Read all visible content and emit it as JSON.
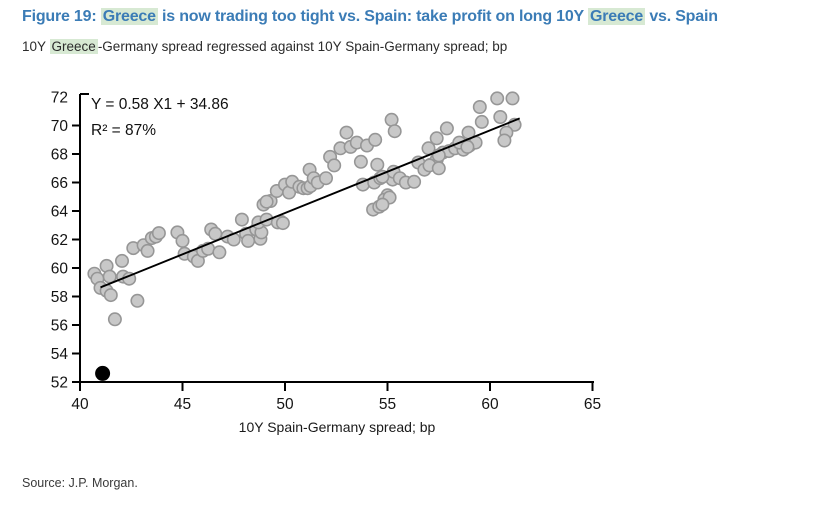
{
  "header": {
    "title_segments": [
      {
        "text": "Figure 19: ",
        "hl": false
      },
      {
        "text": "Greece",
        "hl": true
      },
      {
        "text": " is now trading too tight vs. Spain: take profit on long 10Y ",
        "hl": false
      },
      {
        "text": "Greece",
        "hl": true
      },
      {
        "text": " vs. Spain",
        "hl": false
      }
    ],
    "subtitle_segments": [
      {
        "text": "10Y ",
        "hl": false
      },
      {
        "text": "Greece",
        "hl": true
      },
      {
        "text": "-Germany spread regressed against 10Y Spain-Germany spread; bp",
        "hl": false
      }
    ]
  },
  "chart_data": {
    "type": "scatter",
    "title": "",
    "xlabel": "10Y Spain-Germany spread; bp",
    "ylabel": "",
    "xlim": [
      40,
      65
    ],
    "ylim": [
      52,
      72
    ],
    "xticks": [
      40,
      45,
      50,
      55,
      60,
      65
    ],
    "yticks": [
      52,
      54,
      56,
      58,
      60,
      62,
      64,
      66,
      68,
      70,
      72
    ],
    "grid": false,
    "legend": "none",
    "annotation": {
      "line1": "Y = 0.58 X1 + 34.86",
      "line2": "R² = 87%"
    },
    "regression": {
      "slope": 0.58,
      "intercept": 34.86,
      "r2_pct": 87,
      "x_start": 41.0,
      "x_end": 61.45
    },
    "highlight_point": {
      "x": 41.1,
      "y": 52.6
    },
    "points": [
      [
        40.7,
        59.6
      ],
      [
        40.85,
        59.25
      ],
      [
        41.0,
        58.6
      ],
      [
        41.3,
        60.15
      ],
      [
        41.3,
        58.4
      ],
      [
        41.45,
        59.4
      ],
      [
        41.5,
        58.1
      ],
      [
        41.7,
        56.4
      ],
      [
        42.05,
        60.5
      ],
      [
        42.1,
        59.4
      ],
      [
        42.4,
        59.25
      ],
      [
        42.6,
        61.4
      ],
      [
        42.8,
        57.7
      ],
      [
        43.1,
        61.6
      ],
      [
        43.3,
        61.2
      ],
      [
        43.5,
        62.1
      ],
      [
        43.7,
        62.2
      ],
      [
        43.85,
        62.45
      ],
      [
        44.75,
        62.5
      ],
      [
        45.0,
        61.9
      ],
      [
        45.1,
        61.0
      ],
      [
        45.55,
        60.8
      ],
      [
        45.75,
        60.5
      ],
      [
        46.0,
        61.2
      ],
      [
        46.25,
        61.35
      ],
      [
        46.4,
        62.7
      ],
      [
        46.6,
        62.4
      ],
      [
        46.8,
        61.1
      ],
      [
        47.2,
        62.2
      ],
      [
        47.5,
        62.0
      ],
      [
        47.9,
        63.4
      ],
      [
        48.1,
        62.4
      ],
      [
        48.2,
        61.9
      ],
      [
        48.6,
        62.7
      ],
      [
        48.8,
        62.05
      ],
      [
        48.85,
        62.5
      ],
      [
        48.7,
        63.2
      ],
      [
        49.1,
        63.4
      ],
      [
        49.8,
        63.25
      ],
      [
        48.95,
        64.45
      ],
      [
        49.3,
        64.7
      ],
      [
        49.65,
        63.2
      ],
      [
        49.9,
        63.15
      ],
      [
        49.1,
        64.65
      ],
      [
        49.6,
        65.4
      ],
      [
        50.0,
        65.85
      ],
      [
        50.2,
        65.3
      ],
      [
        50.35,
        66.05
      ],
      [
        50.7,
        65.7
      ],
      [
        50.9,
        65.6
      ],
      [
        51.1,
        65.6
      ],
      [
        51.2,
        66.9
      ],
      [
        51.25,
        65.75
      ],
      [
        51.4,
        66.3
      ],
      [
        51.6,
        66.0
      ],
      [
        52.0,
        66.3
      ],
      [
        52.2,
        67.8
      ],
      [
        52.4,
        67.2
      ],
      [
        52.7,
        68.4
      ],
      [
        53.0,
        69.5
      ],
      [
        53.2,
        68.5
      ],
      [
        53.5,
        68.8
      ],
      [
        53.7,
        67.45
      ],
      [
        54.0,
        68.6
      ],
      [
        54.4,
        69.0
      ],
      [
        55.2,
        70.4
      ],
      [
        55.35,
        69.6
      ],
      [
        53.8,
        65.85
      ],
      [
        54.35,
        66.0
      ],
      [
        54.65,
        66.3
      ],
      [
        55.0,
        65.1
      ],
      [
        55.25,
        66.2
      ],
      [
        54.3,
        64.1
      ],
      [
        54.6,
        64.3
      ],
      [
        54.85,
        64.8
      ],
      [
        55.1,
        64.95
      ],
      [
        54.75,
        64.45
      ],
      [
        54.5,
        67.25
      ],
      [
        54.75,
        66.4
      ],
      [
        55.3,
        66.75
      ],
      [
        55.6,
        66.3
      ],
      [
        55.9,
        66.0
      ],
      [
        56.3,
        66.05
      ],
      [
        56.5,
        67.4
      ],
      [
        56.8,
        66.9
      ],
      [
        57.1,
        67.25
      ],
      [
        57.4,
        67.6
      ],
      [
        57.7,
        68.1
      ],
      [
        58.0,
        68.2
      ],
      [
        58.3,
        68.4
      ],
      [
        58.7,
        68.3
      ],
      [
        59.0,
        68.6
      ],
      [
        59.3,
        68.8
      ],
      [
        57.0,
        68.4
      ],
      [
        57.5,
        67.9
      ],
      [
        57.05,
        67.2
      ],
      [
        57.5,
        67.0
      ],
      [
        57.9,
        69.8
      ],
      [
        57.4,
        69.1
      ],
      [
        58.5,
        68.8
      ],
      [
        58.9,
        68.5
      ],
      [
        58.95,
        69.5
      ],
      [
        59.5,
        71.3
      ],
      [
        59.6,
        70.25
      ],
      [
        60.35,
        71.9
      ],
      [
        60.5,
        70.6
      ],
      [
        61.1,
        71.9
      ],
      [
        61.2,
        70.05
      ],
      [
        60.8,
        69.5
      ],
      [
        60.7,
        68.95
      ]
    ]
  },
  "source": {
    "text": "Source: J.P. Morgan."
  },
  "colors": {
    "title_blue": "#3b7cb6",
    "highlight_green": "#d7e9d3",
    "point_fill": "#c8c8c8",
    "point_stroke": "#969696",
    "axis_black": "#000000",
    "dot_black": "#000000"
  }
}
